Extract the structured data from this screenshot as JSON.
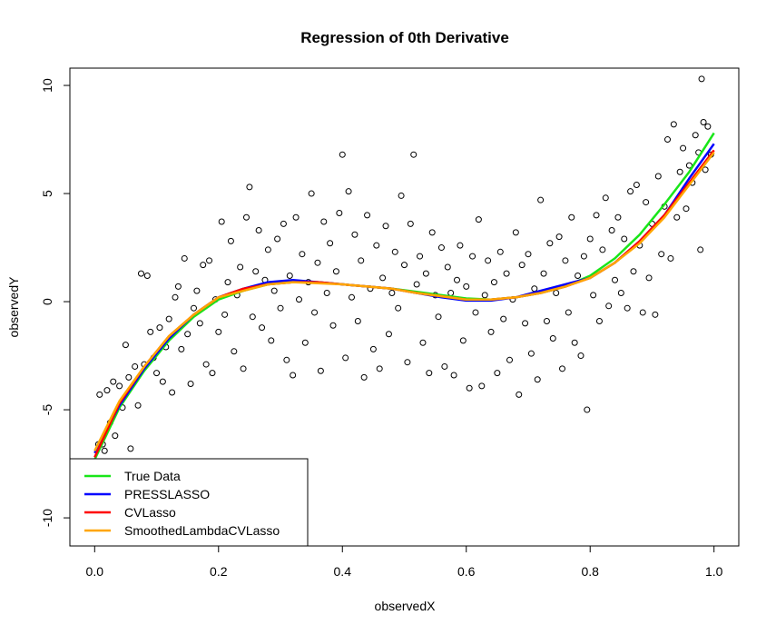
{
  "chart_data": {
    "type": "scatter",
    "title": "Regression of 0th Derivative",
    "xlabel": "observedX",
    "ylabel": "observedY",
    "xlim": [
      -0.04,
      1.04
    ],
    "ylim": [
      -11.3,
      10.8
    ],
    "xticks": [
      0.0,
      0.2,
      0.4,
      0.6,
      0.8,
      1.0
    ],
    "xtick_labels": [
      "0.0",
      "0.2",
      "0.4",
      "0.6",
      "0.8",
      "1.0"
    ],
    "yticks": [
      -10,
      -5,
      0,
      5,
      10
    ],
    "ytick_labels": [
      "-10",
      "-5",
      "0",
      "5",
      "10"
    ],
    "grid": false,
    "legend_position": "bottom-left",
    "points": [
      [
        0.004,
        -7.5
      ],
      [
        0.006,
        -6.6
      ],
      [
        0.008,
        -4.3
      ],
      [
        0.013,
        -6.6
      ],
      [
        0.016,
        -6.9
      ],
      [
        0.02,
        -4.1
      ],
      [
        0.025,
        -5.6
      ],
      [
        0.03,
        -3.7
      ],
      [
        0.033,
        -6.2
      ],
      [
        0.04,
        -3.9
      ],
      [
        0.045,
        -4.9
      ],
      [
        0.05,
        -2.0
      ],
      [
        0.055,
        -3.5
      ],
      [
        0.058,
        -6.8
      ],
      [
        0.065,
        -3.0
      ],
      [
        0.07,
        -4.8
      ],
      [
        0.075,
        1.3
      ],
      [
        0.08,
        -2.9
      ],
      [
        0.085,
        1.2
      ],
      [
        0.09,
        -1.4
      ],
      [
        0.095,
        -2.6
      ],
      [
        0.1,
        -3.3
      ],
      [
        0.105,
        -1.2
      ],
      [
        0.11,
        -3.7
      ],
      [
        0.115,
        -2.1
      ],
      [
        0.12,
        -0.8
      ],
      [
        0.125,
        -4.2
      ],
      [
        0.13,
        0.2
      ],
      [
        0.135,
        0.7
      ],
      [
        0.14,
        -2.2
      ],
      [
        0.145,
        2.0
      ],
      [
        0.15,
        -1.5
      ],
      [
        0.155,
        -3.8
      ],
      [
        0.16,
        -0.3
      ],
      [
        0.165,
        0.5
      ],
      [
        0.17,
        -1.0
      ],
      [
        0.175,
        1.7
      ],
      [
        0.18,
        -2.9
      ],
      [
        0.185,
        1.9
      ],
      [
        0.19,
        -3.3
      ],
      [
        0.195,
        0.1
      ],
      [
        0.2,
        -1.4
      ],
      [
        0.205,
        3.7
      ],
      [
        0.21,
        -0.6
      ],
      [
        0.215,
        0.9
      ],
      [
        0.22,
        2.8
      ],
      [
        0.225,
        -2.3
      ],
      [
        0.23,
        0.3
      ],
      [
        0.235,
        1.6
      ],
      [
        0.24,
        -3.1
      ],
      [
        0.245,
        3.9
      ],
      [
        0.25,
        5.3
      ],
      [
        0.255,
        -0.7
      ],
      [
        0.26,
        1.4
      ],
      [
        0.265,
        3.3
      ],
      [
        0.27,
        -1.2
      ],
      [
        0.275,
        1.0
      ],
      [
        0.28,
        2.4
      ],
      [
        0.285,
        -1.8
      ],
      [
        0.29,
        0.5
      ],
      [
        0.295,
        2.9
      ],
      [
        0.3,
        -0.3
      ],
      [
        0.305,
        3.6
      ],
      [
        0.31,
        -2.7
      ],
      [
        0.315,
        1.2
      ],
      [
        0.32,
        -3.4
      ],
      [
        0.325,
        3.9
      ],
      [
        0.33,
        0.1
      ],
      [
        0.335,
        2.2
      ],
      [
        0.34,
        -1.9
      ],
      [
        0.345,
        0.9
      ],
      [
        0.35,
        5.0
      ],
      [
        0.355,
        -0.5
      ],
      [
        0.36,
        1.8
      ],
      [
        0.365,
        -3.2
      ],
      [
        0.37,
        3.7
      ],
      [
        0.375,
        0.4
      ],
      [
        0.38,
        2.7
      ],
      [
        0.385,
        -1.1
      ],
      [
        0.39,
        1.4
      ],
      [
        0.395,
        4.1
      ],
      [
        0.4,
        6.8
      ],
      [
        0.405,
        -2.6
      ],
      [
        0.41,
        5.1
      ],
      [
        0.415,
        0.2
      ],
      [
        0.42,
        3.1
      ],
      [
        0.425,
        -0.9
      ],
      [
        0.43,
        1.9
      ],
      [
        0.435,
        -3.5
      ],
      [
        0.44,
        4.0
      ],
      [
        0.445,
        0.6
      ],
      [
        0.45,
        -2.2
      ],
      [
        0.455,
        2.6
      ],
      [
        0.46,
        -3.1
      ],
      [
        0.465,
        1.1
      ],
      [
        0.47,
        3.5
      ],
      [
        0.475,
        -1.5
      ],
      [
        0.48,
        0.4
      ],
      [
        0.485,
        2.3
      ],
      [
        0.49,
        -0.3
      ],
      [
        0.495,
        4.9
      ],
      [
        0.5,
        1.7
      ],
      [
        0.505,
        -2.8
      ],
      [
        0.51,
        3.6
      ],
      [
        0.515,
        6.8
      ],
      [
        0.52,
        0.8
      ],
      [
        0.525,
        2.1
      ],
      [
        0.53,
        -1.9
      ],
      [
        0.535,
        1.3
      ],
      [
        0.54,
        -3.3
      ],
      [
        0.545,
        3.2
      ],
      [
        0.55,
        0.3
      ],
      [
        0.555,
        -0.7
      ],
      [
        0.56,
        2.5
      ],
      [
        0.565,
        -3.0
      ],
      [
        0.57,
        1.6
      ],
      [
        0.575,
        0.4
      ],
      [
        0.58,
        -3.4
      ],
      [
        0.585,
        1.0
      ],
      [
        0.59,
        2.6
      ],
      [
        0.595,
        -1.8
      ],
      [
        0.6,
        0.7
      ],
      [
        0.605,
        -4.0
      ],
      [
        0.61,
        2.1
      ],
      [
        0.615,
        -0.5
      ],
      [
        0.62,
        3.8
      ],
      [
        0.625,
        -3.9
      ],
      [
        0.63,
        0.3
      ],
      [
        0.635,
        1.9
      ],
      [
        0.64,
        -1.4
      ],
      [
        0.645,
        0.9
      ],
      [
        0.65,
        -3.3
      ],
      [
        0.655,
        2.3
      ],
      [
        0.66,
        -0.8
      ],
      [
        0.665,
        1.3
      ],
      [
        0.67,
        -2.7
      ],
      [
        0.675,
        0.1
      ],
      [
        0.68,
        3.2
      ],
      [
        0.685,
        -4.3
      ],
      [
        0.69,
        1.7
      ],
      [
        0.695,
        -1.0
      ],
      [
        0.7,
        2.2
      ],
      [
        0.705,
        -2.4
      ],
      [
        0.71,
        0.6
      ],
      [
        0.715,
        -3.6
      ],
      [
        0.72,
        4.7
      ],
      [
        0.725,
        1.3
      ],
      [
        0.73,
        -0.9
      ],
      [
        0.735,
        2.7
      ],
      [
        0.74,
        -1.7
      ],
      [
        0.745,
        0.4
      ],
      [
        0.75,
        3.0
      ],
      [
        0.755,
        -3.1
      ],
      [
        0.76,
        1.9
      ],
      [
        0.765,
        -0.5
      ],
      [
        0.77,
        3.9
      ],
      [
        0.775,
        -1.9
      ],
      [
        0.78,
        1.2
      ],
      [
        0.785,
        -2.5
      ],
      [
        0.79,
        2.1
      ],
      [
        0.795,
        -5.0
      ],
      [
        0.8,
        2.9
      ],
      [
        0.805,
        0.3
      ],
      [
        0.81,
        4.0
      ],
      [
        0.815,
        -0.9
      ],
      [
        0.82,
        2.4
      ],
      [
        0.825,
        4.8
      ],
      [
        0.83,
        -0.2
      ],
      [
        0.835,
        3.3
      ],
      [
        0.84,
        1.0
      ],
      [
        0.845,
        3.9
      ],
      [
        0.85,
        0.4
      ],
      [
        0.855,
        2.9
      ],
      [
        0.86,
        -0.3
      ],
      [
        0.865,
        5.1
      ],
      [
        0.87,
        1.4
      ],
      [
        0.875,
        5.4
      ],
      [
        0.88,
        2.6
      ],
      [
        0.885,
        -0.5
      ],
      [
        0.89,
        4.6
      ],
      [
        0.895,
        1.1
      ],
      [
        0.9,
        3.6
      ],
      [
        0.905,
        -0.6
      ],
      [
        0.91,
        5.8
      ],
      [
        0.915,
        2.2
      ],
      [
        0.92,
        4.4
      ],
      [
        0.925,
        7.5
      ],
      [
        0.93,
        2.0
      ],
      [
        0.935,
        8.2
      ],
      [
        0.94,
        3.9
      ],
      [
        0.945,
        6.0
      ],
      [
        0.95,
        7.1
      ],
      [
        0.955,
        4.3
      ],
      [
        0.96,
        6.3
      ],
      [
        0.965,
        5.5
      ],
      [
        0.97,
        7.7
      ],
      [
        0.975,
        6.9
      ],
      [
        0.978,
        2.4
      ],
      [
        0.98,
        10.3
      ],
      [
        0.983,
        8.3
      ],
      [
        0.986,
        6.1
      ],
      [
        0.99,
        8.1
      ],
      [
        0.995,
        6.8
      ]
    ],
    "series": [
      {
        "name": "True Data",
        "color": "#19e619",
        "x": [
          0,
          0.04,
          0.08,
          0.12,
          0.16,
          0.2,
          0.24,
          0.28,
          0.32,
          0.36,
          0.4,
          0.44,
          0.48,
          0.52,
          0.56,
          0.6,
          0.64,
          0.68,
          0.72,
          0.76,
          0.8,
          0.84,
          0.88,
          0.92,
          0.96,
          1.0
        ],
        "y": [
          -7.3,
          -4.9,
          -3.2,
          -1.8,
          -0.7,
          0.1,
          0.5,
          0.8,
          0.9,
          0.9,
          0.8,
          0.7,
          0.6,
          0.45,
          0.3,
          0.15,
          0.1,
          0.2,
          0.4,
          0.7,
          1.2,
          2.0,
          3.1,
          4.5,
          6.0,
          7.8
        ]
      },
      {
        "name": "PRESSLASSO",
        "color": "#0000ff",
        "x": [
          0,
          0.04,
          0.08,
          0.12,
          0.16,
          0.2,
          0.24,
          0.28,
          0.32,
          0.36,
          0.4,
          0.44,
          0.48,
          0.52,
          0.56,
          0.6,
          0.64,
          0.68,
          0.72,
          0.76,
          0.8,
          0.84,
          0.88,
          0.92,
          0.96,
          1.0
        ],
        "y": [
          -7.0,
          -4.8,
          -3.1,
          -1.7,
          -0.6,
          0.2,
          0.6,
          0.9,
          1.0,
          0.9,
          0.8,
          0.7,
          0.6,
          0.4,
          0.2,
          0.05,
          0.05,
          0.2,
          0.5,
          0.8,
          1.1,
          1.8,
          2.8,
          4.0,
          5.7,
          7.3
        ]
      },
      {
        "name": "CVLasso",
        "color": "#ff0000",
        "x": [
          0,
          0.04,
          0.08,
          0.12,
          0.16,
          0.2,
          0.24,
          0.28,
          0.32,
          0.36,
          0.4,
          0.44,
          0.48,
          0.52,
          0.56,
          0.6,
          0.64,
          0.68,
          0.72,
          0.76,
          0.8,
          0.84,
          0.88,
          0.92,
          0.96,
          1.0
        ],
        "y": [
          -7.2,
          -4.7,
          -3.0,
          -1.6,
          -0.6,
          0.2,
          0.6,
          0.8,
          0.9,
          0.9,
          0.8,
          0.7,
          0.6,
          0.4,
          0.25,
          0.1,
          0.1,
          0.2,
          0.4,
          0.7,
          1.1,
          1.8,
          2.8,
          4.0,
          5.5,
          7.0
        ]
      },
      {
        "name": "SmoothedLambdaCVLasso",
        "color": "#ffa500",
        "x": [
          0,
          0.04,
          0.08,
          0.12,
          0.16,
          0.2,
          0.24,
          0.28,
          0.32,
          0.36,
          0.4,
          0.44,
          0.48,
          0.52,
          0.56,
          0.6,
          0.64,
          0.68,
          0.72,
          0.76,
          0.8,
          0.84,
          0.88,
          0.92,
          0.96,
          1.0
        ],
        "y": [
          -6.9,
          -4.6,
          -3.0,
          -1.6,
          -0.6,
          0.2,
          0.5,
          0.8,
          0.9,
          0.85,
          0.8,
          0.7,
          0.6,
          0.4,
          0.25,
          0.1,
          0.1,
          0.2,
          0.4,
          0.7,
          1.1,
          1.8,
          2.7,
          3.9,
          5.4,
          6.9
        ]
      }
    ]
  }
}
